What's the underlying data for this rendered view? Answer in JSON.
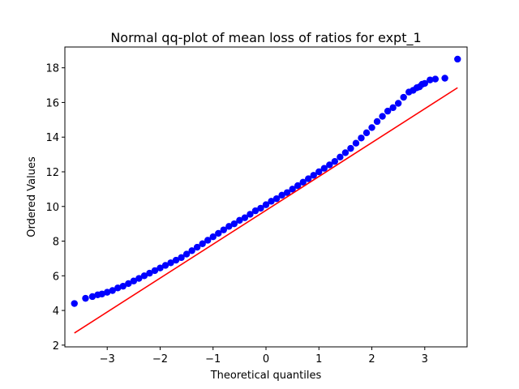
{
  "chart_data": {
    "type": "scatter",
    "title": "Normal qq-plot of mean loss of ratios for expt_1",
    "xlabel": "Theoretical quantiles",
    "ylabel": "Ordered Values",
    "xlim": [
      -3.8,
      3.8
    ],
    "ylim": [
      1.9,
      19.2
    ],
    "xticks": [
      -3,
      -2,
      -1,
      0,
      1,
      2,
      3
    ],
    "yticks": [
      2,
      4,
      6,
      8,
      10,
      12,
      14,
      16,
      18
    ],
    "xtick_labels": [
      "−3",
      "−2",
      "−1",
      "0",
      "1",
      "2",
      "3"
    ],
    "ytick_labels": [
      "2",
      "4",
      "6",
      "8",
      "10",
      "12",
      "14",
      "16",
      "18"
    ],
    "grid": false,
    "legend": "none",
    "series": [
      {
        "kind": "points",
        "color": "#0000ff",
        "x": [
          -3.62,
          -3.41,
          -3.28,
          -3.18,
          -3.1,
          -3.0,
          -2.9,
          -2.8,
          -2.7,
          -2.6,
          -2.5,
          -2.4,
          -2.3,
          -2.2,
          -2.1,
          -2.0,
          -1.9,
          -1.8,
          -1.7,
          -1.6,
          -1.5,
          -1.4,
          -1.3,
          -1.2,
          -1.1,
          -1.0,
          -0.9,
          -0.8,
          -0.7,
          -0.6,
          -0.5,
          -0.4,
          -0.3,
          -0.2,
          -0.1,
          0.0,
          0.1,
          0.2,
          0.3,
          0.4,
          0.5,
          0.6,
          0.7,
          0.8,
          0.9,
          1.0,
          1.1,
          1.2,
          1.3,
          1.4,
          1.5,
          1.6,
          1.7,
          1.8,
          1.9,
          2.0,
          2.1,
          2.2,
          2.3,
          2.4,
          2.5,
          2.6,
          2.7,
          2.78,
          2.85,
          2.9,
          2.95,
          3.0,
          3.1,
          3.2,
          3.38,
          3.62
        ],
        "y": [
          4.4,
          4.7,
          4.8,
          4.9,
          4.95,
          5.05,
          5.15,
          5.3,
          5.4,
          5.55,
          5.7,
          5.85,
          6.0,
          6.15,
          6.3,
          6.45,
          6.6,
          6.75,
          6.9,
          7.05,
          7.25,
          7.45,
          7.65,
          7.85,
          8.05,
          8.25,
          8.45,
          8.65,
          8.85,
          9.0,
          9.2,
          9.35,
          9.55,
          9.75,
          9.9,
          10.1,
          10.3,
          10.45,
          10.65,
          10.8,
          11.0,
          11.2,
          11.4,
          11.6,
          11.8,
          12.0,
          12.2,
          12.4,
          12.6,
          12.85,
          13.1,
          13.35,
          13.65,
          13.95,
          14.25,
          14.55,
          14.9,
          15.2,
          15.5,
          15.7,
          15.95,
          16.3,
          16.6,
          16.7,
          16.85,
          16.9,
          17.05,
          17.1,
          17.3,
          17.35,
          17.4,
          18.5
        ]
      },
      {
        "kind": "line",
        "color": "#ff0000",
        "x": [
          -3.62,
          3.62
        ],
        "y": [
          2.7,
          16.85
        ]
      }
    ]
  }
}
